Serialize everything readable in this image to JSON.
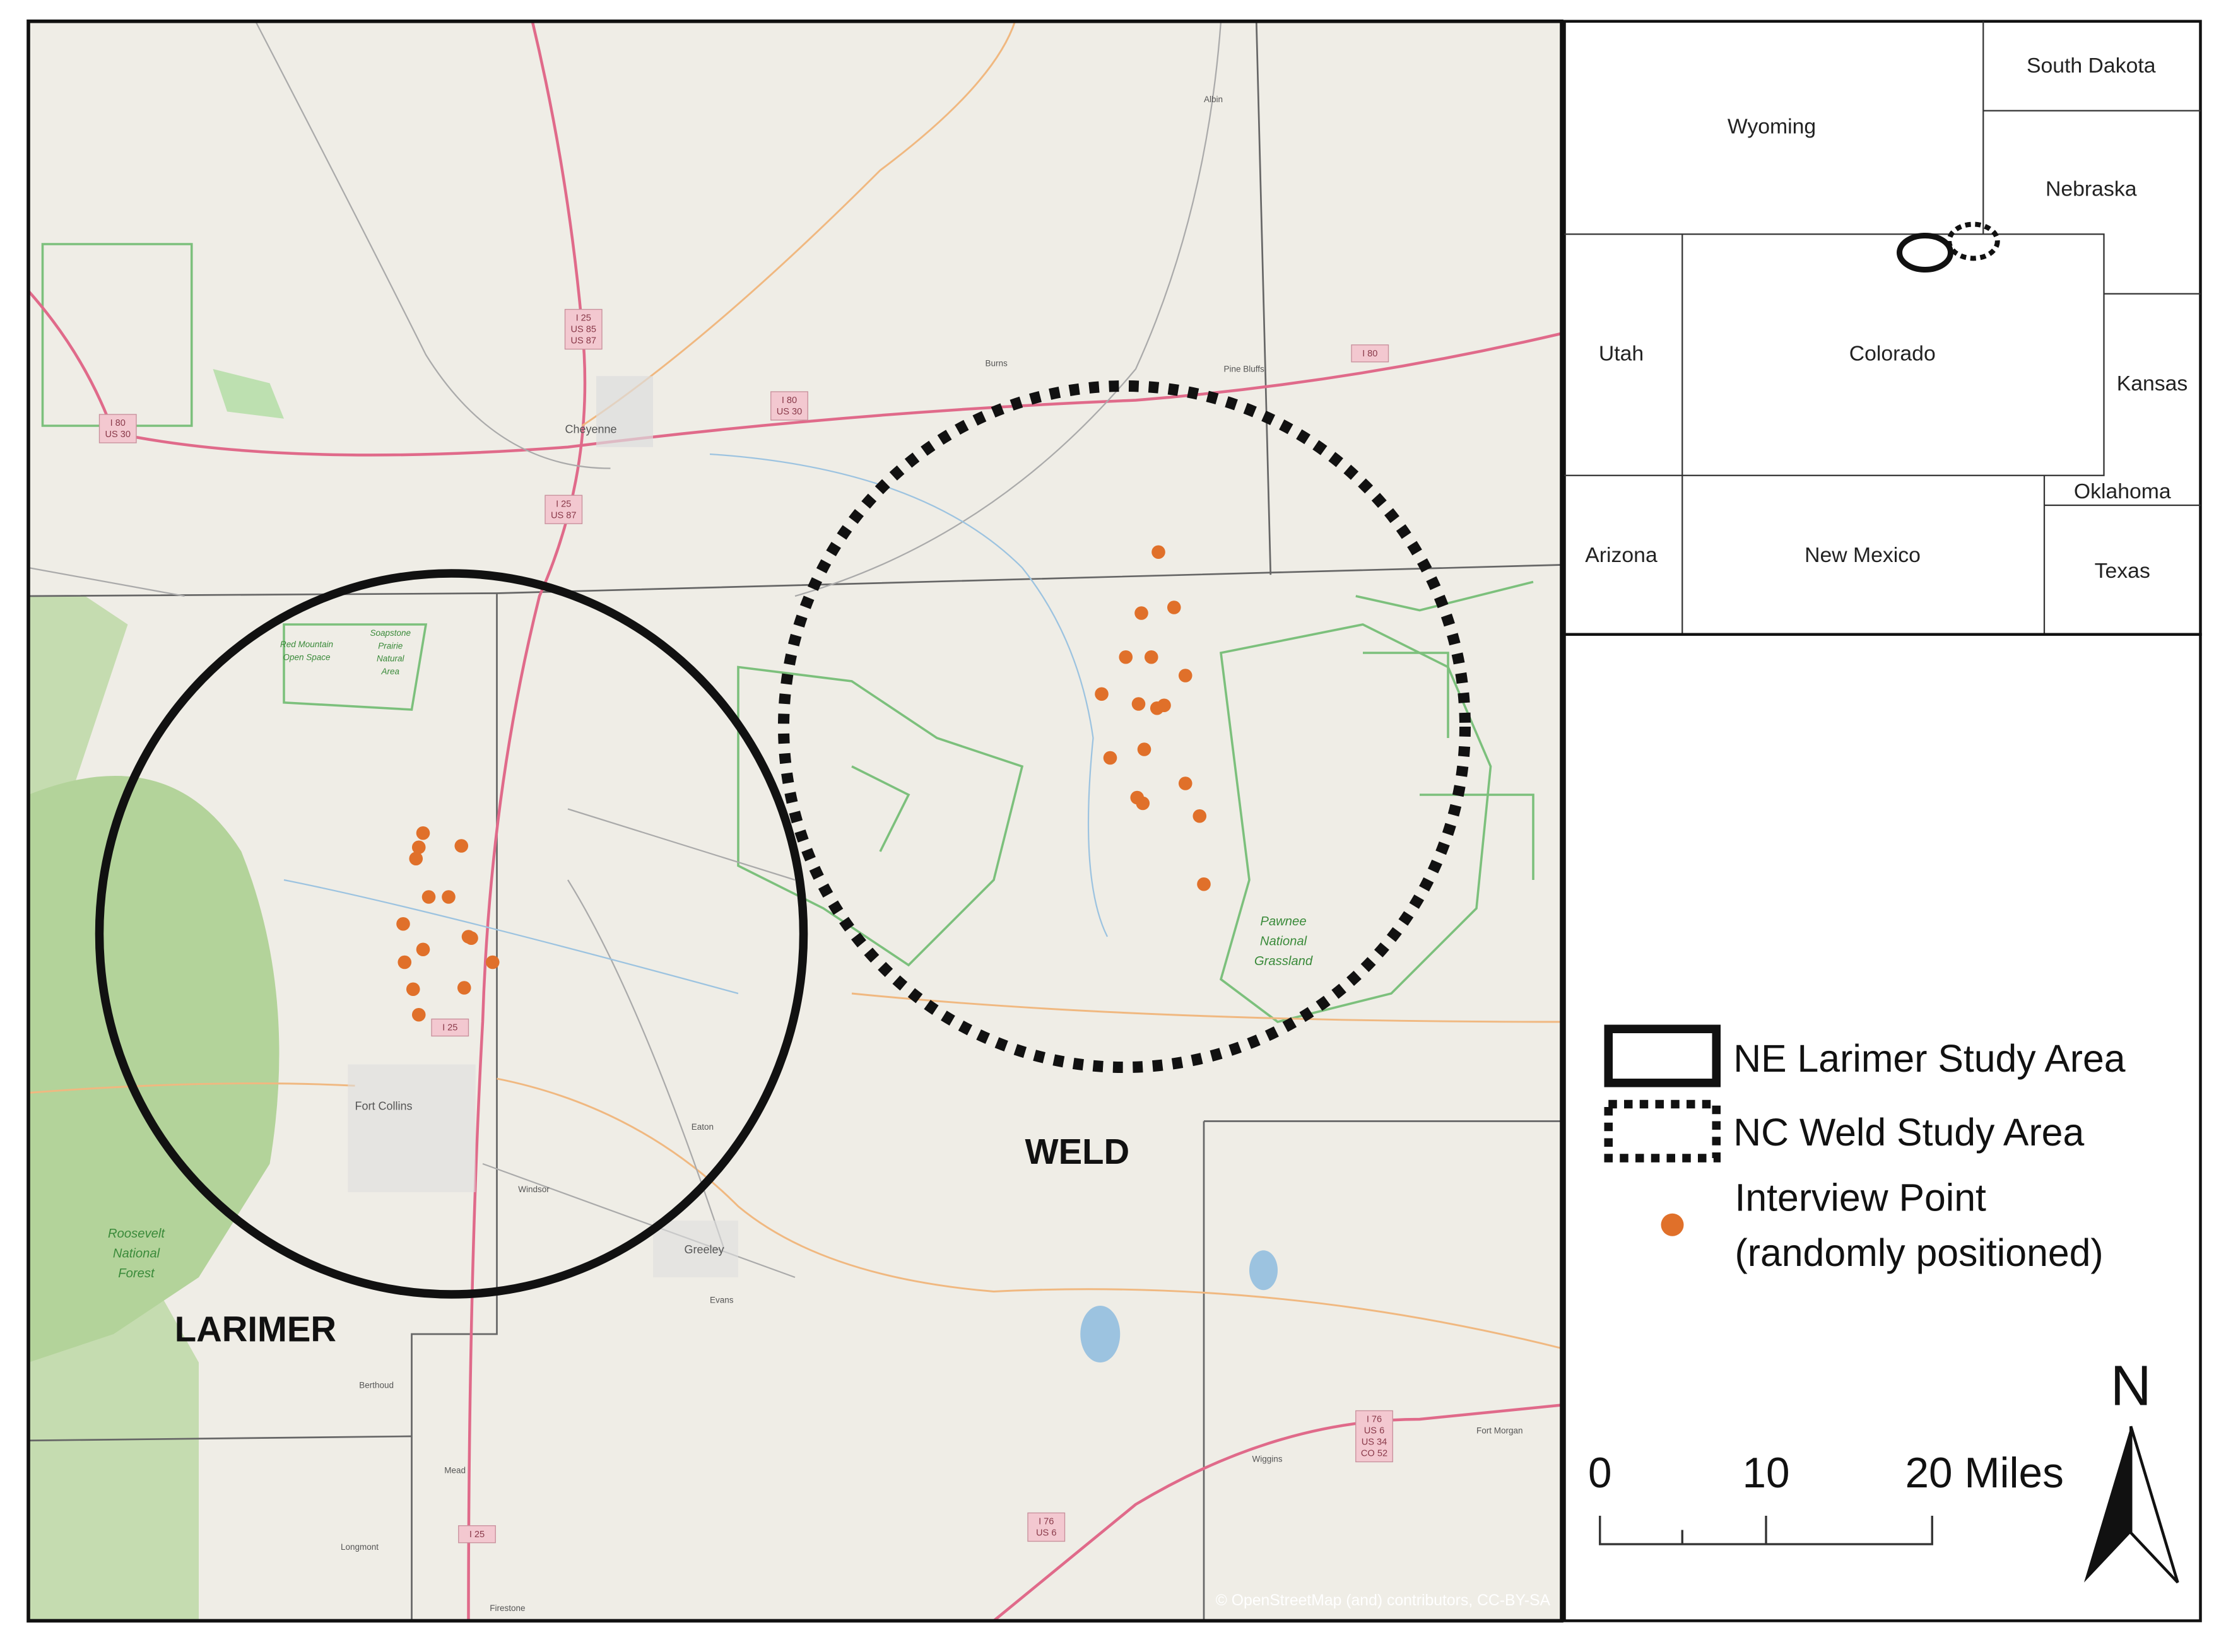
{
  "map": {
    "places": {
      "cheyenne": "Cheyenne",
      "fort_collins": "Fort Collins",
      "greeley": "Greeley",
      "windsor": "Windsor",
      "eaton": "Eaton",
      "evans": "Evans",
      "berthoud": "Berthoud",
      "mead": "Mead",
      "longmont": "Longmont",
      "firestone": "Firestone",
      "wiggins": "Wiggins",
      "fort_morgan": "Fort Morgan",
      "burns": "Burns",
      "pine_bluffs": "Pine Bluffs",
      "albin": "Albin"
    },
    "counties": {
      "larimer": "LARIMER",
      "weld": "WELD"
    },
    "areas": {
      "roosevelt": [
        "Roosevelt",
        "National",
        "Forest"
      ],
      "pawnee": [
        "Pawnee",
        "National",
        "Grassland"
      ],
      "red_mountain": [
        "Red Mountain",
        "Open Space"
      ],
      "soapstone": [
        "Soapstone",
        "Prairie",
        "Natural",
        "Area"
      ]
    },
    "shields": {
      "i25_north": [
        "I 25",
        "US 85",
        "US 87"
      ],
      "i80_west": [
        "I 80",
        "US 30"
      ],
      "i80_mid": [
        "I 80",
        "US 30"
      ],
      "i80_east": [
        "I 80"
      ],
      "i25_cheyenne": [
        "I 25",
        "US 87"
      ],
      "i25_larimer": [
        "I 25"
      ],
      "i25_south": [
        "I 25"
      ],
      "i76_west": [
        "I 76",
        "US 6"
      ],
      "i76_east": [
        "I 76",
        "US 6",
        "US 34",
        "CO 52"
      ]
    },
    "attribution": "© OpenStreetMap (and) contributors, CC-BY-SA"
  },
  "inset": {
    "states": {
      "south_dakota": "South Dakota",
      "wyoming": "Wyoming",
      "nebraska": "Nebraska",
      "utah": "Utah",
      "colorado": "Colorado",
      "kansas": "Kansas",
      "oklahoma": "Oklahoma",
      "arizona": "Arizona",
      "new_mexico": "New Mexico",
      "texas": "Texas"
    }
  },
  "legend": {
    "larimer": "NE Larimer Study Area",
    "weld": "NC Weld Study Area",
    "point": [
      "Interview Point",
      "(randomly positioned)"
    ]
  },
  "scale": {
    "labels": [
      "0",
      "10",
      "20 Miles"
    ]
  },
  "north": "N"
}
